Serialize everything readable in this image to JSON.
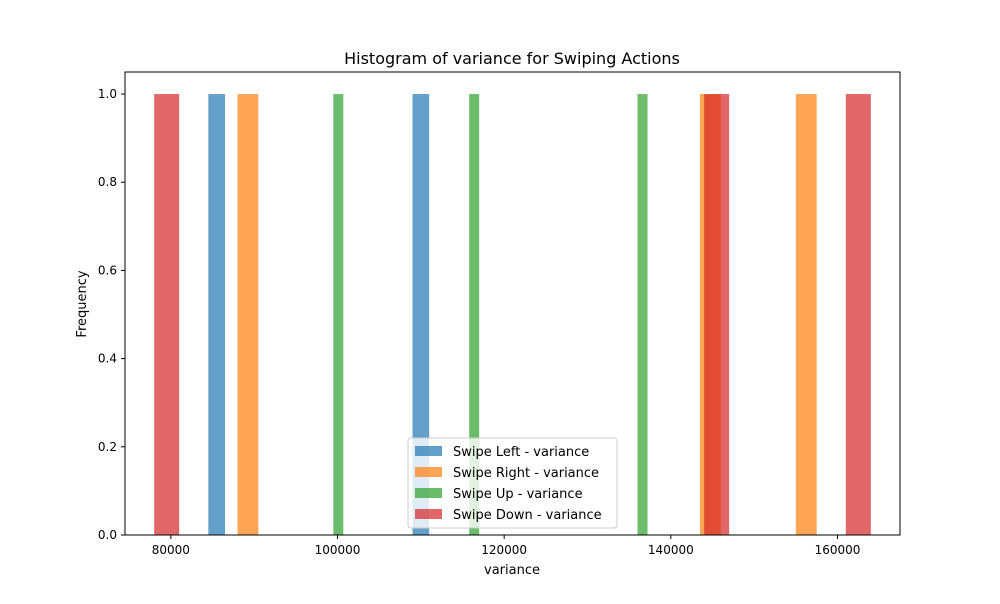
{
  "chart_data": {
    "type": "bar",
    "title": "Histogram of variance for Swiping Actions",
    "xlabel": "variance",
    "ylabel": "Frequency",
    "xlim": [
      74500,
      167500
    ],
    "ylim": [
      0,
      1.05
    ],
    "grid": false,
    "legend_position": "lower center",
    "x_ticks": [
      {
        "value": 80000,
        "label": "80000"
      },
      {
        "value": 100000,
        "label": "100000"
      },
      {
        "value": 120000,
        "label": "120000"
      },
      {
        "value": 140000,
        "label": "140000"
      },
      {
        "value": 160000,
        "label": "160000"
      }
    ],
    "y_ticks": [
      {
        "value": 0.0,
        "label": "0.0"
      },
      {
        "value": 0.2,
        "label": "0.2"
      },
      {
        "value": 0.4,
        "label": "0.4"
      },
      {
        "value": 0.6,
        "label": "0.6"
      },
      {
        "value": 0.8,
        "label": "0.8"
      },
      {
        "value": 1.0,
        "label": "1.0"
      }
    ],
    "series": [
      {
        "name": "Swipe Left - variance",
        "color": "#1f77b4",
        "bins": [
          {
            "x0": 84500,
            "x1": 86500,
            "count": 1
          },
          {
            "x0": 109000,
            "x1": 111000,
            "count": 1
          }
        ]
      },
      {
        "name": "Swipe Right - variance",
        "color": "#ff7f0e",
        "bins": [
          {
            "x0": 88000,
            "x1": 90500,
            "count": 1
          },
          {
            "x0": 143500,
            "x1": 146000,
            "count": 1
          },
          {
            "x0": 155000,
            "x1": 157500,
            "count": 1
          }
        ]
      },
      {
        "name": "Swipe Up - variance",
        "color": "#2ca02c",
        "bins": [
          {
            "x0": 99500,
            "x1": 100700,
            "count": 1
          },
          {
            "x0": 115800,
            "x1": 117000,
            "count": 1
          },
          {
            "x0": 136000,
            "x1": 137200,
            "count": 1
          }
        ]
      },
      {
        "name": "Swipe Down - variance",
        "color": "#d62728",
        "bins": [
          {
            "x0": 78000,
            "x1": 81000,
            "count": 1
          },
          {
            "x0": 144000,
            "x1": 147000,
            "count": 1
          },
          {
            "x0": 161000,
            "x1": 164000,
            "count": 1
          }
        ]
      }
    ]
  }
}
